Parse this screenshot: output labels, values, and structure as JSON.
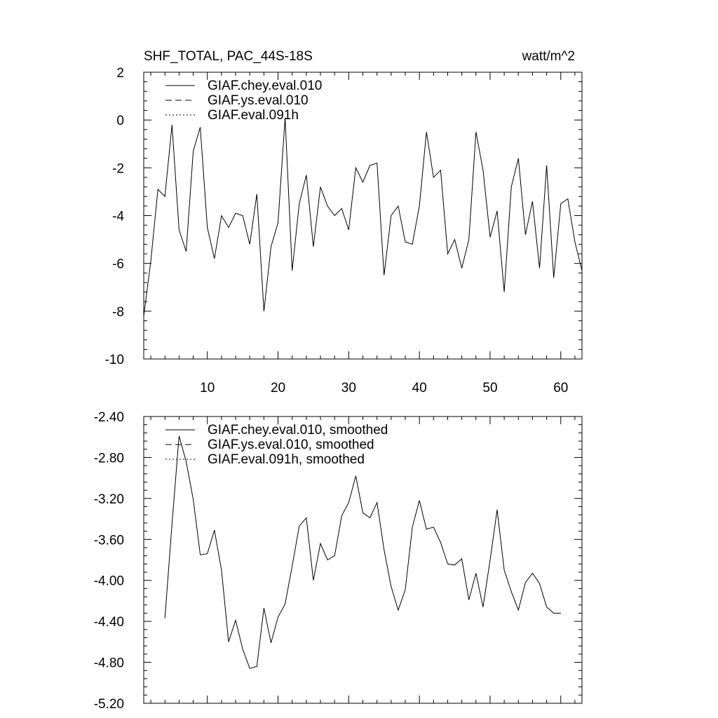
{
  "chart_data": [
    {
      "type": "line",
      "title": "SHF_TOTAL, PAC_44S-18S",
      "units": "watt/m^2",
      "xlim": [
        1,
        63
      ],
      "ylim": [
        -10,
        2
      ],
      "x_ticks": [
        10,
        20,
        30,
        40,
        50,
        60
      ],
      "y_ticks": [
        2,
        0,
        -2,
        -4,
        -6,
        -8,
        -10
      ],
      "y_tick_labels": [
        "2",
        "0",
        "-2",
        "-4",
        "-6",
        "-8",
        "-10"
      ],
      "legend": {
        "position": "top-left",
        "entries": [
          {
            "label": "GIAF.chey.eval.010",
            "style": "solid"
          },
          {
            "label": "GIAF.ys.eval.010",
            "style": "dashed"
          },
          {
            "label": "GIAF.eval.091h",
            "style": "dotted"
          }
        ]
      },
      "series": [
        {
          "style": "solid",
          "x": [
            1,
            2,
            3,
            4,
            5,
            6,
            7,
            8,
            9,
            10,
            11,
            12,
            13,
            14,
            15,
            16,
            17,
            18,
            19,
            20,
            21,
            22,
            23,
            24,
            25,
            26,
            27,
            28,
            29,
            30,
            31,
            32,
            33,
            34,
            35,
            36,
            37,
            38,
            39,
            40,
            41,
            42,
            43,
            44,
            45,
            46,
            47,
            48,
            49,
            50,
            51,
            52,
            53,
            54,
            55,
            56,
            57,
            58,
            59,
            60,
            61,
            62,
            63
          ],
          "values": [
            -8.2,
            -5.9,
            -2.9,
            -3.2,
            -0.2,
            -4.6,
            -5.5,
            -1.3,
            -0.3,
            -4.5,
            -5.8,
            -4.0,
            -4.5,
            -3.9,
            -4.0,
            -5.2,
            -3.1,
            -8.0,
            -5.3,
            -4.3,
            0.1,
            -6.3,
            -3.5,
            -2.3,
            -5.3,
            -2.8,
            -3.6,
            -4.0,
            -3.7,
            -4.6,
            -2.0,
            -2.6,
            -1.9,
            -1.8,
            -6.5,
            -4.0,
            -3.6,
            -5.1,
            -5.2,
            -3.6,
            -0.5,
            -2.4,
            -2.1,
            -5.6,
            -5.0,
            -6.2,
            -5.0,
            -0.5,
            -2.1,
            -4.9,
            -3.8,
            -7.2,
            -2.8,
            -1.6,
            -4.8,
            -3.4,
            -6.2,
            -1.9,
            -6.6,
            -3.5,
            -3.3,
            -5.1,
            -6.3
          ]
        }
      ]
    },
    {
      "type": "line",
      "xlim": [
        1,
        63
      ],
      "ylim": [
        -5.2,
        -2.4
      ],
      "x_ticks": [
        10,
        20,
        30,
        40,
        50,
        60
      ],
      "y_ticks": [
        -2.4,
        -2.8,
        -3.2,
        -3.6,
        -4.0,
        -4.4,
        -4.8,
        -5.2
      ],
      "y_tick_labels": [
        "-2.40",
        "-2.80",
        "-3.20",
        "-3.60",
        "-4.00",
        "-4.40",
        "-4.80",
        "-5.20"
      ],
      "legend": {
        "position": "top-left",
        "entries": [
          {
            "label": "GIAF.chey.eval.010, smoothed",
            "style": "solid"
          },
          {
            "label": "GIAF.ys.eval.010, smoothed",
            "style": "dashed"
          },
          {
            "label": "GIAF.eval.091h, smoothed",
            "style": "dotted"
          }
        ]
      },
      "series": [
        {
          "style": "solid",
          "x": [
            4,
            5,
            6,
            7,
            8,
            9,
            10,
            11,
            12,
            13,
            14,
            15,
            16,
            17,
            18,
            19,
            20,
            21,
            22,
            23,
            24,
            25,
            26,
            27,
            28,
            29,
            30,
            31,
            32,
            33,
            34,
            35,
            36,
            37,
            38,
            39,
            40,
            41,
            42,
            43,
            44,
            45,
            46,
            47,
            48,
            49,
            50,
            51,
            52,
            53,
            54,
            55,
            56,
            57,
            58,
            59,
            60
          ],
          "values": [
            -4.37,
            -3.45,
            -2.59,
            -2.84,
            -3.21,
            -3.75,
            -3.74,
            -3.51,
            -3.9,
            -4.6,
            -4.39,
            -4.67,
            -4.86,
            -4.84,
            -4.27,
            -4.61,
            -4.36,
            -4.23,
            -3.86,
            -3.47,
            -3.39,
            -4.0,
            -3.64,
            -3.8,
            -3.76,
            -3.37,
            -3.24,
            -2.98,
            -3.34,
            -3.39,
            -3.24,
            -3.7,
            -4.06,
            -4.29,
            -4.09,
            -3.48,
            -3.22,
            -3.5,
            -3.48,
            -3.63,
            -3.84,
            -3.85,
            -3.79,
            -4.19,
            -3.93,
            -4.26,
            -3.8,
            -3.31,
            -3.9,
            -4.11,
            -4.29,
            -4.02,
            -3.93,
            -4.03,
            -4.26,
            -4.32,
            -4.32
          ]
        }
      ]
    }
  ]
}
